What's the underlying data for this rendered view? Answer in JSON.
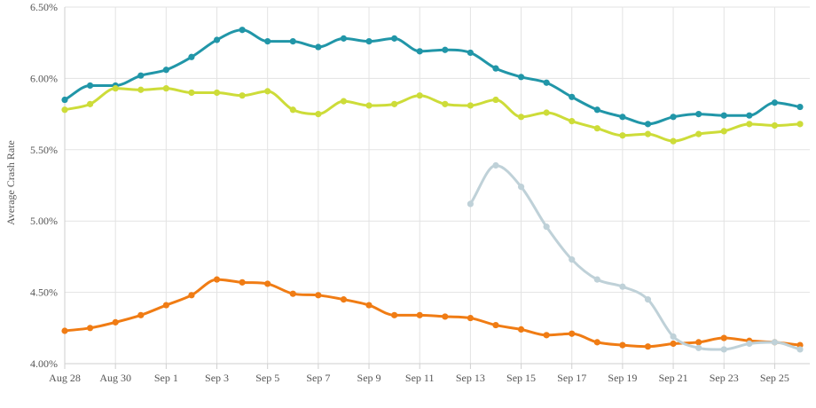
{
  "chart_data": {
    "type": "line",
    "title": "",
    "xlabel": "",
    "ylabel": "Average Crash Rate",
    "ylim": [
      4.0,
      6.5
    ],
    "y_ticks": [
      "4.00%",
      "4.50%",
      "5.00%",
      "5.50%",
      "6.00%",
      "6.50%"
    ],
    "y_tick_values": [
      4.0,
      4.5,
      5.0,
      5.5,
      6.0,
      6.5
    ],
    "x": [
      "Aug 28",
      "Aug 29",
      "Aug 30",
      "Aug 31",
      "Sep 1",
      "Sep 2",
      "Sep 3",
      "Sep 4",
      "Sep 5",
      "Sep 6",
      "Sep 7",
      "Sep 8",
      "Sep 9",
      "Sep 10",
      "Sep 11",
      "Sep 12",
      "Sep 13",
      "Sep 14",
      "Sep 15",
      "Sep 16",
      "Sep 17",
      "Sep 18",
      "Sep 19",
      "Sep 20",
      "Sep 21",
      "Sep 22",
      "Sep 23",
      "Sep 24",
      "Sep 25",
      "Sep 26"
    ],
    "x_tick_labels": [
      "Aug 28",
      "Aug 30",
      "Sep 1",
      "Sep 3",
      "Sep 5",
      "Sep 7",
      "Sep 9",
      "Sep 11",
      "Sep 13",
      "Sep 15",
      "Sep 17",
      "Sep 19",
      "Sep 21",
      "Sep 23",
      "Sep 25"
    ],
    "grid": true,
    "series": [
      {
        "color": "#2196a8",
        "values": [
          5.85,
          5.95,
          5.95,
          6.02,
          6.06,
          6.15,
          6.27,
          6.34,
          6.26,
          6.26,
          6.22,
          6.28,
          6.26,
          6.28,
          6.19,
          6.2,
          6.18,
          6.07,
          6.01,
          5.97,
          5.87,
          5.78,
          5.73,
          5.68,
          5.73,
          5.75,
          5.74,
          5.74,
          5.83,
          5.8
        ]
      },
      {
        "color": "#cddc39",
        "values": [
          5.78,
          5.82,
          5.93,
          5.92,
          5.93,
          5.9,
          5.9,
          5.88,
          5.91,
          5.78,
          5.75,
          5.84,
          5.81,
          5.82,
          5.88,
          5.82,
          5.81,
          5.85,
          5.73,
          5.76,
          5.7,
          5.65,
          5.6,
          5.61,
          5.56,
          5.61,
          5.63,
          5.68,
          5.67,
          5.68
        ]
      },
      {
        "color": "#f07c14",
        "values": [
          4.23,
          4.25,
          4.29,
          4.34,
          4.41,
          4.48,
          4.59,
          4.57,
          4.56,
          4.49,
          4.48,
          4.45,
          4.41,
          4.34,
          4.34,
          4.33,
          4.32,
          4.27,
          4.24,
          4.2,
          4.21,
          4.15,
          4.13,
          4.12,
          4.14,
          4.15,
          4.18,
          4.16,
          4.15,
          4.13
        ]
      },
      {
        "color": "#bfd1d8",
        "values": [
          null,
          null,
          null,
          null,
          null,
          null,
          null,
          null,
          null,
          null,
          null,
          null,
          null,
          null,
          null,
          null,
          5.12,
          5.39,
          5.24,
          4.96,
          4.73,
          4.59,
          4.54,
          4.45,
          4.19,
          4.11,
          4.1,
          4.14,
          4.15,
          4.1
        ]
      }
    ]
  }
}
